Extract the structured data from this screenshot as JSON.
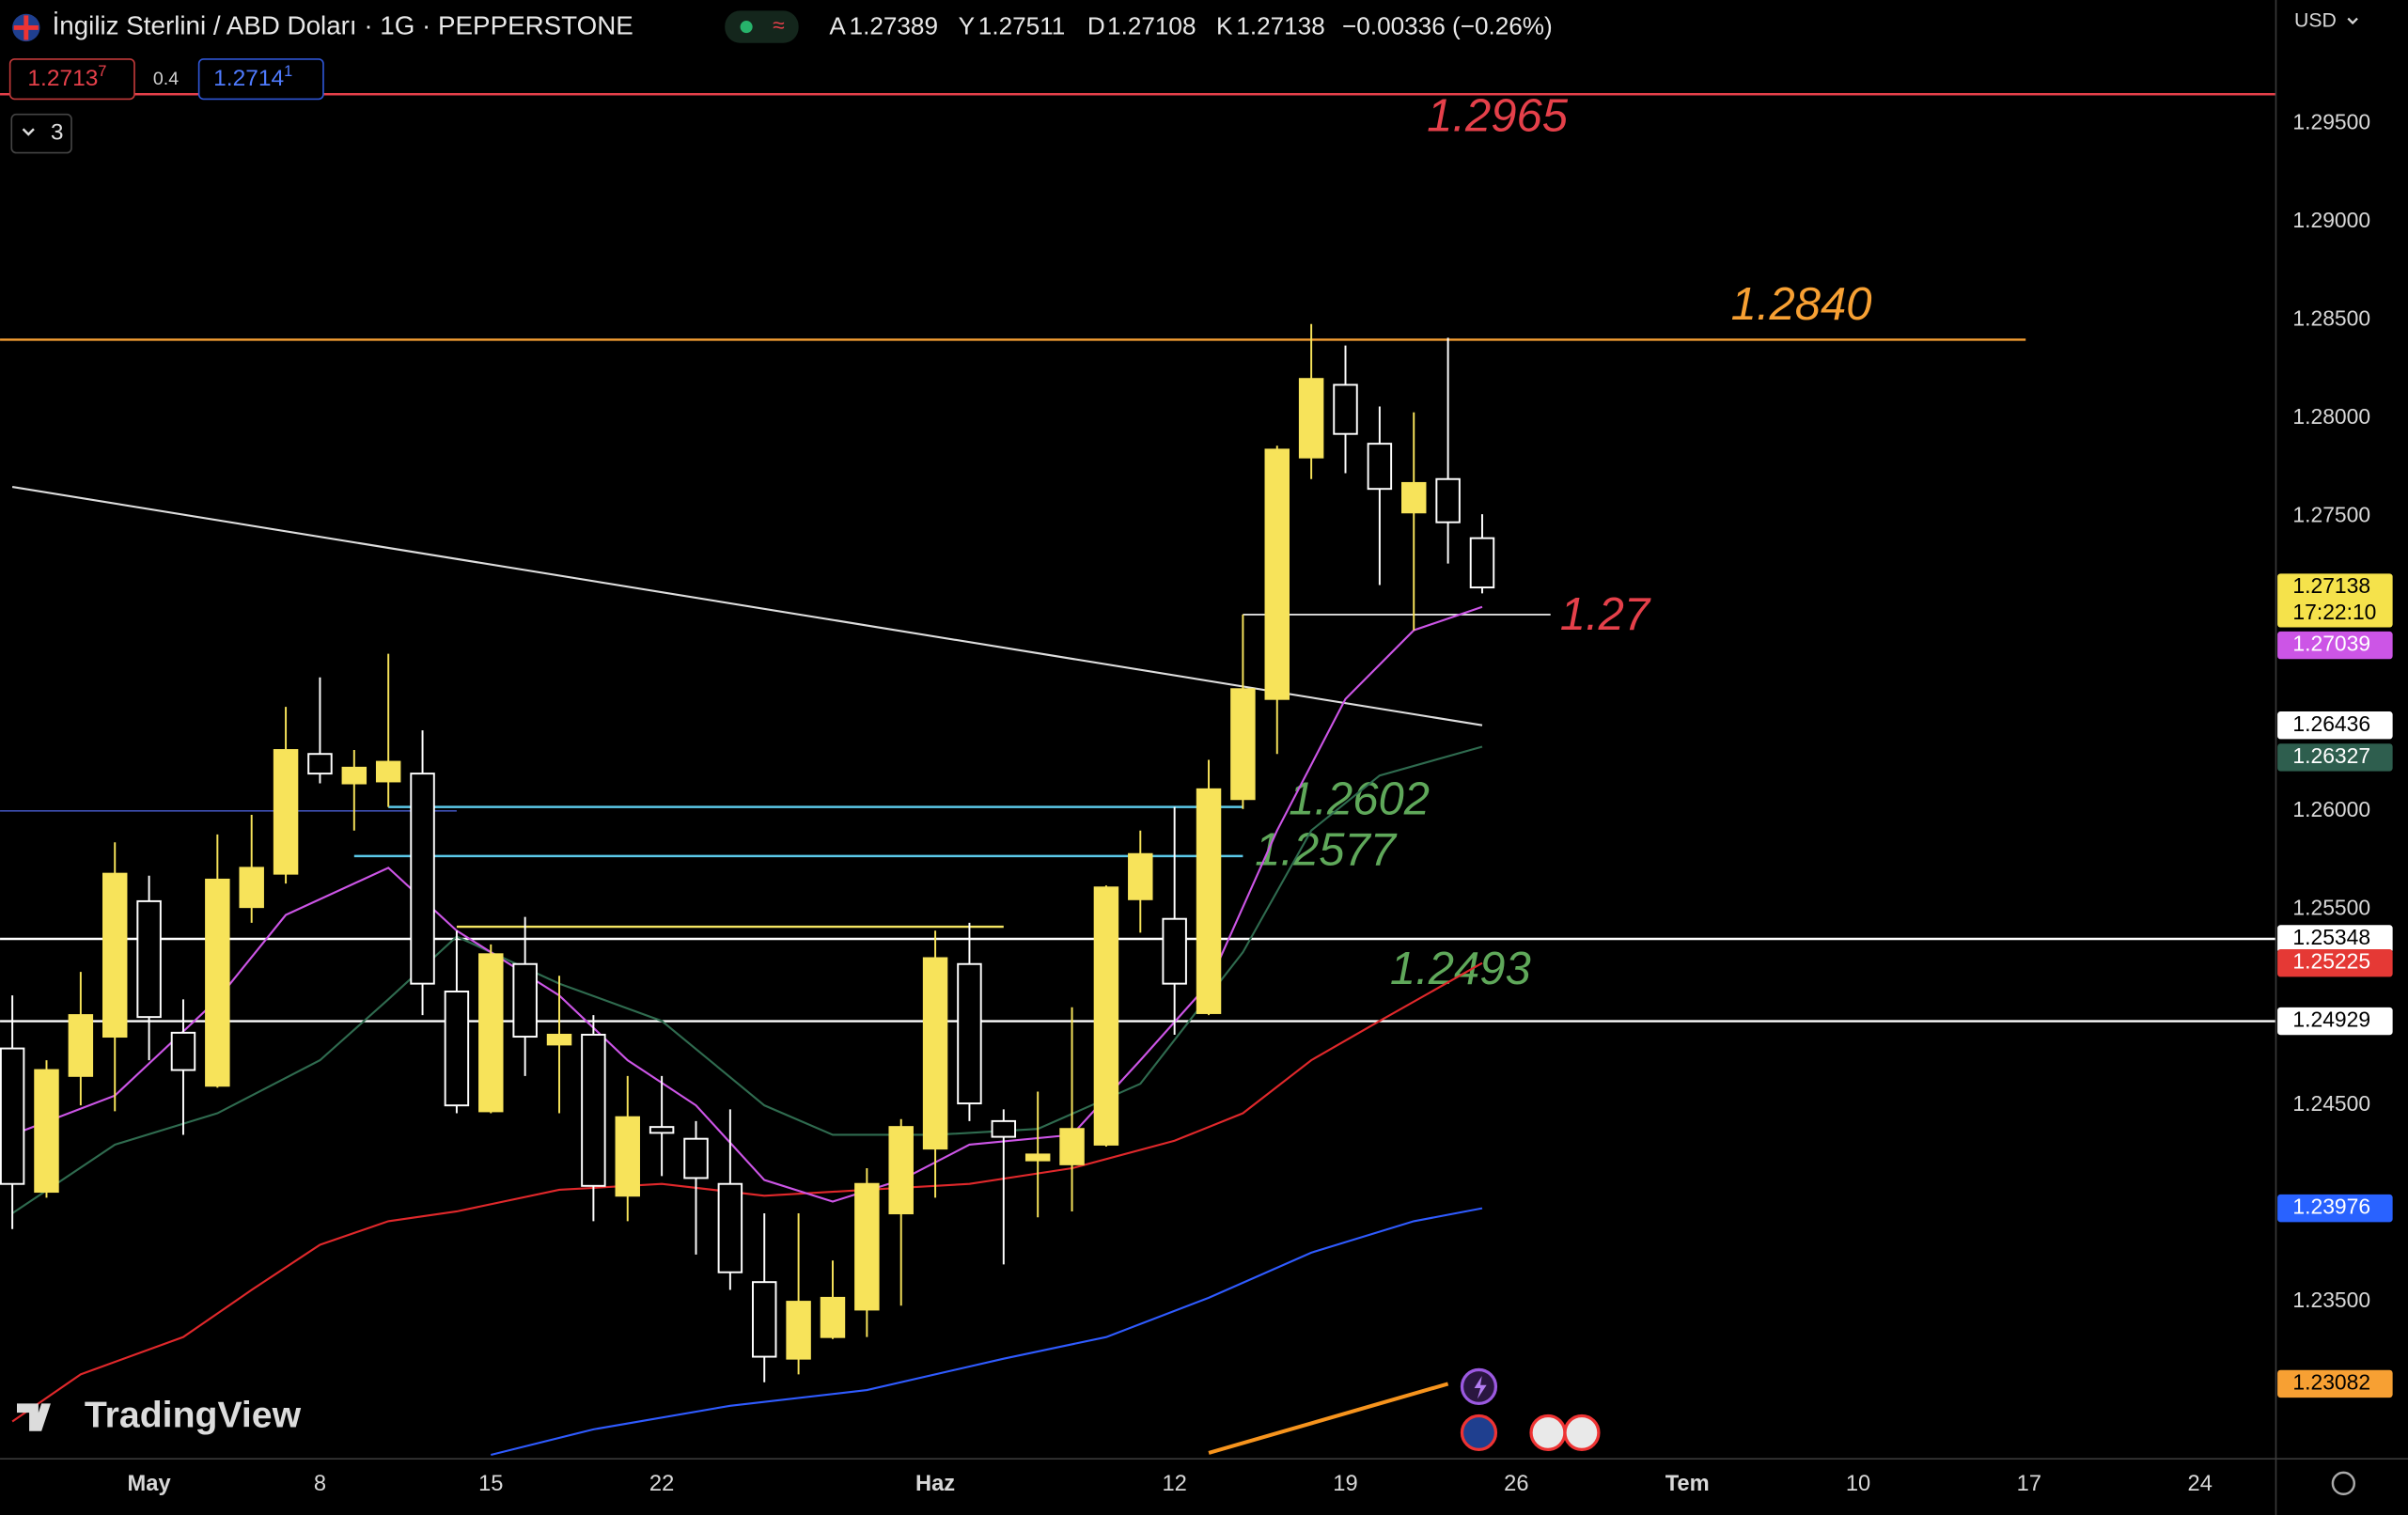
{
  "header": {
    "symbol": "İngiliz Sterlini / ABD Doları · 1G · PEPPERSTONE",
    "ohlc_labels": [
      "A",
      "Y",
      "D",
      "K"
    ],
    "change": "−0.00336 (−0.26%)",
    "currency": "USD",
    "sell": {
      "price": "1.2713",
      "pip": "7"
    },
    "spread": "0.4",
    "buy": {
      "price": "1.2714",
      "pip": "1"
    },
    "indicators_count": "3",
    "logo": "TradingView"
  },
  "chart_data": {
    "type": "candlestick",
    "x": [
      -4,
      -3,
      -2,
      -1,
      0,
      1,
      2,
      3,
      4,
      5,
      6,
      7,
      8,
      9,
      10,
      11,
      12,
      13,
      14,
      15,
      16,
      17,
      18,
      19,
      20,
      21,
      22,
      23,
      24,
      25,
      26,
      27,
      28,
      29,
      30,
      31,
      32,
      33,
      34,
      35,
      36,
      37,
      38,
      39
    ],
    "open": [
      1.2479,
      1.2406,
      1.2465,
      1.2485,
      1.2554,
      1.2487,
      1.246,
      1.2551,
      1.2568,
      1.2629,
      1.2614,
      1.2615,
      1.2619,
      1.2508,
      1.2447,
      1.2522,
      1.2481,
      1.2486,
      1.2404,
      1.2439,
      1.2433,
      1.241,
      1.236,
      1.2321,
      1.2332,
      1.2346,
      1.2395,
      1.2428,
      1.2522,
      1.2442,
      1.2422,
      1.242,
      1.243,
      1.2555,
      1.2545,
      1.2497,
      1.2606,
      1.2657,
      1.278,
      1.2817,
      1.2787,
      1.2752,
      1.2769,
      1.27389
    ],
    "high": [
      1.2506,
      1.2473,
      1.2518,
      1.2584,
      1.2567,
      1.2504,
      1.2588,
      1.2598,
      1.2653,
      1.2668,
      1.2631,
      1.268,
      1.2641,
      1.2539,
      1.2532,
      1.2546,
      1.2516,
      1.2496,
      1.2465,
      1.2465,
      1.2442,
      1.2448,
      1.2395,
      1.2395,
      1.2371,
      1.2418,
      1.2443,
      1.2539,
      1.2543,
      1.2448,
      1.2457,
      1.25,
      1.2562,
      1.259,
      1.2602,
      1.2626,
      1.27,
      1.2786,
      1.2848,
      1.2837,
      1.2806,
      1.2803,
      1.2841,
      1.27511
    ],
    "low": [
      1.2387,
      1.2403,
      1.245,
      1.2447,
      1.2473,
      1.2435,
      1.2459,
      1.2543,
      1.2563,
      1.2614,
      1.259,
      1.2602,
      1.2496,
      1.2446,
      1.2446,
      1.2465,
      1.2446,
      1.2391,
      1.2391,
      1.2414,
      1.2374,
      1.2356,
      1.2309,
      1.2313,
      1.2331,
      1.2332,
      1.2348,
      1.2403,
      1.2442,
      1.2369,
      1.2393,
      1.2396,
      1.2429,
      1.2538,
      1.2486,
      1.2496,
      1.2601,
      1.2629,
      1.2769,
      1.2772,
      1.2715,
      1.2692,
      1.2726,
      1.27108
    ],
    "close": [
      1.241,
      1.2468,
      1.2496,
      1.2568,
      1.2495,
      1.2468,
      1.2565,
      1.2571,
      1.2631,
      1.2619,
      1.2622,
      1.2625,
      1.2512,
      1.245,
      1.2527,
      1.2485,
      1.2486,
      1.2409,
      1.2444,
      1.2436,
      1.2413,
      1.2365,
      1.2322,
      1.235,
      1.2352,
      1.241,
      1.2439,
      1.2525,
      1.2451,
      1.2434,
      1.2425,
      1.2438,
      1.2561,
      1.2578,
      1.2512,
      1.2611,
      1.2662,
      1.2784,
      1.282,
      1.2792,
      1.2764,
      1.2767,
      1.2747,
      1.27138
    ],
    "up_color": "#f7e35a",
    "down_color": "#ffffff",
    "xlim": [
      -4.36,
      62.22
    ],
    "xticks": [
      {
        "value": 0,
        "label": "May"
      },
      {
        "value": 5,
        "label": "8"
      },
      {
        "value": 10,
        "label": "15"
      },
      {
        "value": 15,
        "label": "22"
      },
      {
        "value": 23,
        "label": "Haz"
      },
      {
        "value": 30,
        "label": "12"
      },
      {
        "value": 35,
        "label": "19"
      },
      {
        "value": 40,
        "label": "26"
      },
      {
        "value": 45,
        "label": "Tem"
      },
      {
        "value": 50,
        "label": "10"
      },
      {
        "value": 55,
        "label": "17"
      },
      {
        "value": 60,
        "label": "24"
      }
    ],
    "ylim": [
      1.227,
      1.3013
    ],
    "yticks": [
      {
        "value": 1.295,
        "label": "1.29500"
      },
      {
        "value": 1.29,
        "label": "1.29000"
      },
      {
        "value": 1.285,
        "label": "1.28500"
      },
      {
        "value": 1.28,
        "label": "1.28000"
      },
      {
        "value": 1.275,
        "label": "1.27500"
      },
      {
        "value": 1.26,
        "label": "1.26000"
      },
      {
        "value": 1.255,
        "label": "1.25500"
      },
      {
        "value": 1.245,
        "label": "1.24500"
      },
      {
        "value": 1.235,
        "label": "1.23500"
      }
    ],
    "overlays": [
      {
        "color": "#dddddd",
        "x": [
          -4,
          39
        ],
        "values": [
          1.2765,
          1.26436
        ]
      },
      {
        "color": "#2f5bff",
        "x": [
          10,
          13,
          17,
          21,
          25,
          28,
          31,
          34,
          37,
          39
        ],
        "values": [
          1.2272,
          1.2285,
          1.2297,
          1.2305,
          1.2321,
          1.2332,
          1.2352,
          1.2375,
          1.2391,
          1.23976
        ]
      },
      {
        "color": "#f7941d",
        "x": [
          31,
          38
        ],
        "values": [
          1.2273,
          1.23082
        ]
      },
      {
        "color": "#e0282b",
        "x": [
          -4,
          -2,
          1,
          3,
          5,
          7,
          9,
          12,
          15,
          18,
          21,
          24,
          27,
          30,
          32,
          34,
          36,
          39
        ],
        "values": [
          1.2289,
          1.2313,
          1.2332,
          1.2356,
          1.2379,
          1.2391,
          1.2396,
          1.2407,
          1.241,
          1.2404,
          1.2407,
          1.241,
          1.2418,
          1.2432,
          1.2446,
          1.2473,
          1.2493,
          1.25225
        ]
      },
      {
        "color": "#2f6b4f",
        "x": [
          -4,
          -1,
          2,
          5,
          7,
          9,
          12,
          15,
          18,
          20,
          23,
          26,
          29,
          32,
          34,
          36,
          39
        ],
        "values": [
          1.2395,
          1.243,
          1.2446,
          1.2473,
          1.2504,
          1.2536,
          1.2512,
          1.2493,
          1.245,
          1.2435,
          1.2435,
          1.2438,
          1.2461,
          1.2528,
          1.259,
          1.2618,
          1.26327
        ]
      },
      {
        "color": "#cc55e6",
        "x": [
          -4,
          -1,
          2,
          4,
          7,
          9,
          12,
          14,
          16,
          18,
          20,
          22,
          24,
          27,
          29,
          31,
          33,
          35,
          37,
          39
        ],
        "values": [
          1.2435,
          1.2455,
          1.2504,
          1.2547,
          1.2571,
          1.2539,
          1.2506,
          1.2473,
          1.245,
          1.2412,
          1.2401,
          1.2412,
          1.243,
          1.2435,
          1.2473,
          1.2512,
          1.259,
          1.2657,
          1.2692,
          1.27039
        ]
      }
    ],
    "levels": [
      {
        "value": 1.2965,
        "color": "#e5404a",
        "label_color": "#e5404a",
        "from": -4.36,
        "to": 62.22
      },
      {
        "value": 1.284,
        "label": "1.2840",
        "color": "#f7a033",
        "label_color": "#f7a033",
        "from": -4.36,
        "to": 54.9
      },
      {
        "value": 1.27,
        "color": "#ffffff",
        "label_color": "#e5404a",
        "from": 32,
        "to": 41
      },
      {
        "value": 1.2602,
        "color": "#5bc8e8",
        "label_color": "#5fa85a",
        "from": 7,
        "to": 32
      },
      {
        "value": 1.2577,
        "color": "#5bc8e8",
        "label_color": "#5fa85a",
        "from": 6,
        "to": 32
      },
      {
        "value": 1.2541,
        "color": "#f5e663",
        "from": 9,
        "to": 25
      },
      {
        "value": 1.26,
        "color": "#3f51b5",
        "from": -4.36,
        "to": 9
      },
      {
        "value": 1.25348,
        "color": "#ffffff",
        "from": -4.36,
        "to": 62.22
      },
      {
        "value": 1.24929,
        "label": "1.2493",
        "color": "#ffffff",
        "label_color": "#5fa85a",
        "from": -4.36,
        "to": 62.22
      }
    ],
    "price_tags": [
      {
        "value": 1.27138,
        "color": "#f5e24b",
        "text_color": "#000000",
        "countdown": "17:22:10"
      },
      {
        "value": 1.27039,
        "color": "#cc55e6",
        "text_color": "#ffffff"
      },
      {
        "value": 1.26436,
        "color": "#ffffff",
        "text_color": "#000000"
      },
      {
        "value": 1.26327,
        "color": "#2e5e4e",
        "text_color": "#ffffff"
      },
      {
        "value": 1.25348,
        "color": "#ffffff",
        "text_color": "#000000"
      },
      {
        "value": 1.25225,
        "color": "#e53935",
        "text_color": "#ffffff"
      },
      {
        "value": 1.24929,
        "color": "#ffffff",
        "text_color": "#000000"
      },
      {
        "value": 1.23976,
        "color": "#2962ff",
        "text_color": "#ffffff"
      },
      {
        "value": 1.23082,
        "color": "#f7a033",
        "text_color": "#000000"
      }
    ]
  }
}
